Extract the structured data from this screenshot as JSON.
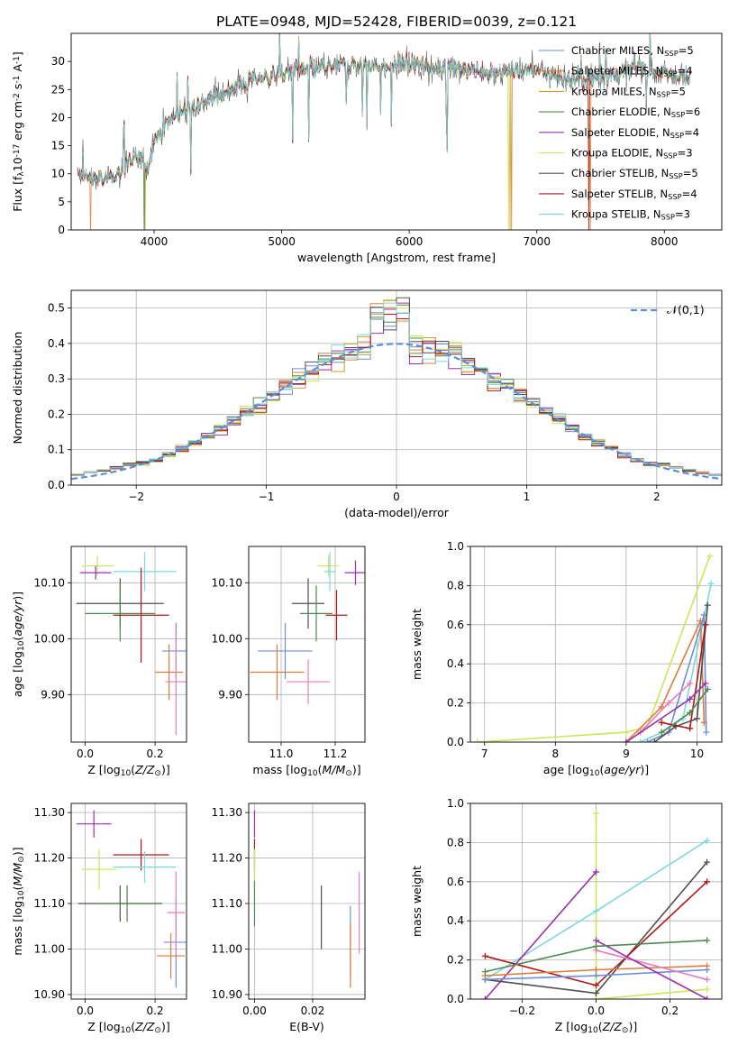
{
  "figure_title": "PLATE=0948, MJD=52428, FIBERID=0039, z=0.121",
  "colors": {
    "Chabrier MILES": "#6b8fd4",
    "Salpeter MILES": "#e07b39",
    "Kroupa MILES": "#c9a227",
    "Chabrier ELODIE": "#4d8a4d",
    "Salpeter ELODIE": "#9b30b0",
    "Kroupa ELODIE": "#c8e85a",
    "Chabrier STELIB": "#505050",
    "Salpeter STELIB": "#b01818",
    "Kroupa STELIB": "#7dd8dc",
    "pink": "#e87cc0",
    "normal": "#5b8fd8"
  },
  "chart_data": [
    {
      "id": "spectrum",
      "type": "line",
      "xlabel": "wavelength [Angstrom, rest frame]",
      "ylabel": "Flux [f$_\\lambda$10$^{-17}$ erg cm$^{-2}$ s$^{-1}$ A$^{-1}$]",
      "xlim": [
        3350,
        8450
      ],
      "ylim": [
        0,
        35
      ],
      "xticks": [
        4000,
        5000,
        6000,
        7000,
        8000
      ],
      "yticks": [
        0,
        5,
        10,
        15,
        20,
        25,
        30
      ],
      "grid": false,
      "legend_position": "top-right",
      "continuum_points": [
        [
          3400,
          9.5
        ],
        [
          3600,
          9
        ],
        [
          3700,
          10
        ],
        [
          3800,
          12
        ],
        [
          3900,
          13
        ],
        [
          3950,
          11
        ],
        [
          4000,
          16
        ],
        [
          4100,
          19
        ],
        [
          4200,
          21
        ],
        [
          4300,
          22
        ],
        [
          4500,
          24
        ],
        [
          4800,
          27
        ],
        [
          5000,
          28
        ],
        [
          5200,
          28.5
        ],
        [
          5500,
          29.5
        ],
        [
          5800,
          29
        ],
        [
          6000,
          29.5
        ],
        [
          6200,
          29
        ],
        [
          6500,
          28.5
        ],
        [
          6800,
          28
        ],
        [
          7000,
          28.5
        ],
        [
          7200,
          27
        ],
        [
          7500,
          27
        ],
        [
          7700,
          28
        ],
        [
          7800,
          29
        ],
        [
          8000,
          28
        ],
        [
          8200,
          27
        ]
      ],
      "series": [
        {
          "name": "Chabrier MILES, N$_{SSP}$=5",
          "color_key": "Chabrier MILES"
        },
        {
          "name": "Salpeter MILES, N$_{SSP}$=4",
          "color_key": "Salpeter MILES"
        },
        {
          "name": "Kroupa MILES, N$_{SSP}$=5",
          "color_key": "Kroupa MILES"
        },
        {
          "name": "Chabrier ELODIE, N$_{SSP}$=6",
          "color_key": "Chabrier ELODIE"
        },
        {
          "name": "Salpeter ELODIE, N$_{SSP}$=4",
          "color_key": "Salpeter ELODIE"
        },
        {
          "name": "Kroupa ELODIE, N$_{SSP}$=3",
          "color_key": "Kroupa ELODIE"
        },
        {
          "name": "Chabrier STELIB, N$_{SSP}$=5",
          "color_key": "Chabrier STELIB"
        },
        {
          "name": "Salpeter STELIB, N$_{SSP}$=4",
          "color_key": "Salpeter STELIB"
        },
        {
          "name": "Kroupa STELIB, N$_{SSP}$=3",
          "color_key": "Kroupa STELIB"
        }
      ]
    },
    {
      "id": "residuals",
      "type": "histogram",
      "xlabel": "(data-model)/error",
      "ylabel": "Normed distribution",
      "xlim": [
        -2.5,
        2.5
      ],
      "ylim": [
        0,
        0.55
      ],
      "xticks": [
        -2,
        -1,
        0,
        1,
        2
      ],
      "yticks": [
        0.0,
        0.1,
        0.2,
        0.3,
        0.4,
        0.5
      ],
      "grid": true,
      "legend_position": "top-right",
      "legend_label": "$\\mathcal{N}(0,1)$",
      "bin_edges_start": -2.5,
      "bin_width": 0.1
    },
    {
      "id": "age_vs_Z",
      "type": "scatter",
      "xlabel": "Z [log$_{10}$($Z/Z_\\odot$)]",
      "ylabel": "age  [log$_{10}$($age/yr$)]",
      "xlim": [
        -0.04,
        0.29
      ],
      "ylim": [
        9.815,
        10.165
      ],
      "xticks": [
        0.0,
        0.2
      ],
      "yticks": [
        9.9,
        10.0,
        10.1
      ],
      "grid": true,
      "points": [
        {
          "c": "Kroupa ELODIE",
          "x": 0.035,
          "y": 10.13,
          "ex": 0.045,
          "ey": 0.018
        },
        {
          "c": "Salpeter ELODIE",
          "x": 0.03,
          "y": 10.118,
          "ex": 0.045,
          "ey": 0.012
        },
        {
          "c": "Kroupa STELIB",
          "x": 0.17,
          "y": 10.12,
          "ex": 0.09,
          "ey": 0.035
        },
        {
          "c": "Chabrier STELIB",
          "x": 0.1,
          "y": 10.063,
          "ex": 0.125,
          "ey": 0.045
        },
        {
          "c": "Chabrier ELODIE",
          "x": 0.1,
          "y": 10.045,
          "ex": 0.1,
          "ey": 0.05
        },
        {
          "c": "Salpeter STELIB",
          "x": 0.16,
          "y": 10.042,
          "ex": 0.08,
          "ey": 0.085
        },
        {
          "c": "Chabrier MILES",
          "x": 0.26,
          "y": 9.978,
          "ex": 0.04,
          "ey": 0.05
        },
        {
          "c": "Salpeter MILES",
          "x": 0.24,
          "y": 9.94,
          "ex": 0.04,
          "ey": 0.05
        },
        {
          "c": "pink",
          "x": 0.26,
          "y": 9.923,
          "ex": 0.03,
          "ey": 0.095
        }
      ]
    },
    {
      "id": "age_vs_mass",
      "type": "scatter",
      "xlabel": "mass [log$_{10}$($M/M_\\odot$)]",
      "xlim": [
        10.88,
        11.31
      ],
      "ylim": [
        9.815,
        10.165
      ],
      "xticks": [
        11.0,
        11.2
      ],
      "yticks": [
        9.9,
        10.0,
        10.1
      ],
      "grid": true,
      "points": [
        {
          "c": "Kroupa ELODIE",
          "x": 11.175,
          "y": 10.13,
          "ex": 0.04,
          "ey": 0.018
        },
        {
          "c": "Salpeter ELODIE",
          "x": 11.275,
          "y": 10.118,
          "ex": 0.04,
          "ey": 0.022
        },
        {
          "c": "Kroupa STELIB",
          "x": 11.18,
          "y": 10.12,
          "ex": 0.02,
          "ey": 0.035
        },
        {
          "c": "Chabrier STELIB",
          "x": 11.1,
          "y": 10.063,
          "ex": 0.06,
          "ey": 0.045
        },
        {
          "c": "Chabrier ELODIE",
          "x": 11.13,
          "y": 10.045,
          "ex": 0.06,
          "ey": 0.05
        },
        {
          "c": "Salpeter STELIB",
          "x": 11.205,
          "y": 10.042,
          "ex": 0.04,
          "ey": 0.045
        },
        {
          "c": "Chabrier MILES",
          "x": 11.015,
          "y": 9.978,
          "ex": 0.1,
          "ey": 0.05
        },
        {
          "c": "Salpeter MILES",
          "x": 10.985,
          "y": 9.94,
          "ex": 0.1,
          "ey": 0.05
        },
        {
          "c": "pink",
          "x": 11.1,
          "y": 9.923,
          "ex": 0.08,
          "ey": 0.04
        }
      ]
    },
    {
      "id": "mass_weight_vs_age",
      "type": "line",
      "xlabel": "age  [log$_{10}$($age/yr$)]",
      "ylabel": "mass weight",
      "xlim": [
        6.8,
        10.35
      ],
      "ylim": [
        0,
        1
      ],
      "xticks": [
        7,
        8,
        9,
        10
      ],
      "yticks": [
        0.0,
        0.2,
        0.4,
        0.6,
        0.8,
        1.0
      ],
      "grid": true,
      "series": [
        {
          "c": "Kroupa ELODIE",
          "points": [
            [
              6.9,
              0.0
            ],
            [
              9.0,
              0.05
            ],
            [
              9.3,
              0.08
            ],
            [
              10.18,
              0.95
            ]
          ]
        },
        {
          "c": "Kroupa STELIB",
          "points": [
            [
              9.2,
              0.0
            ],
            [
              9.5,
              0.05
            ],
            [
              9.8,
              0.12
            ],
            [
              10.2,
              0.81
            ]
          ]
        },
        {
          "c": "Salpeter MILES",
          "points": [
            [
              9.0,
              0.0
            ],
            [
              9.5,
              0.18
            ],
            [
              10.05,
              0.62
            ],
            [
              10.1,
              0.1
            ]
          ]
        },
        {
          "c": "Chabrier MILES",
          "points": [
            [
              9.3,
              0.0
            ],
            [
              9.6,
              0.05
            ],
            [
              10.1,
              0.65
            ],
            [
              10.13,
              0.05
            ]
          ]
        },
        {
          "c": "Chabrier STELIB",
          "points": [
            [
              9.4,
              0.0
            ],
            [
              9.7,
              0.08
            ],
            [
              10.0,
              0.12
            ],
            [
              10.15,
              0.7
            ]
          ]
        },
        {
          "c": "Salpeter STELIB",
          "points": [
            [
              9.5,
              0.1
            ],
            [
              9.9,
              0.07
            ],
            [
              10.12,
              0.6
            ]
          ]
        },
        {
          "c": "pink",
          "points": [
            [
              9.2,
              0.05
            ],
            [
              9.6,
              0.2
            ],
            [
              9.9,
              0.3
            ]
          ]
        },
        {
          "c": "Salpeter ELODIE",
          "points": [
            [
              9.0,
              0.0
            ],
            [
              9.9,
              0.22
            ],
            [
              10.12,
              0.3
            ]
          ]
        },
        {
          "c": "Chabrier ELODIE",
          "points": [
            [
              9.5,
              0.05
            ],
            [
              9.9,
              0.15
            ],
            [
              10.15,
              0.27
            ]
          ]
        }
      ]
    },
    {
      "id": "mass_vs_Z",
      "type": "scatter",
      "xlabel": "Z [log$_{10}$($Z/Z_\\odot$)]",
      "ylabel": "mass [log$_{10}$($M/M_\\odot$)]",
      "xlim": [
        -0.04,
        0.29
      ],
      "ylim": [
        10.89,
        11.32
      ],
      "xticks": [
        0.0,
        0.2
      ],
      "yticks": [
        10.9,
        11.0,
        11.1,
        11.2,
        11.3
      ],
      "grid": true,
      "points": [
        {
          "c": "Salpeter ELODIE",
          "x": 0.025,
          "y": 11.275,
          "ex": 0.05,
          "ey": 0.03
        },
        {
          "c": "Salpeter STELIB",
          "x": 0.16,
          "y": 11.207,
          "ex": 0.08,
          "ey": 0.035
        },
        {
          "c": "Kroupa STELIB",
          "x": 0.17,
          "y": 11.18,
          "ex": 0.09,
          "ey": 0.035
        },
        {
          "c": "Kroupa ELODIE",
          "x": 0.04,
          "y": 11.175,
          "ex": 0.05,
          "ey": 0.045
        },
        {
          "c": "Chabrier STELIB",
          "x": 0.1,
          "y": 11.1,
          "ex": 0.12,
          "ey": 0.04
        },
        {
          "c": "Chabrier ELODIE",
          "x": 0.12,
          "y": 11.1,
          "ex": 0.1,
          "ey": 0.04
        },
        {
          "c": "Chabrier MILES",
          "x": 0.26,
          "y": 11.015,
          "ex": 0.035,
          "ey": 0.1
        },
        {
          "c": "Salpeter MILES",
          "x": 0.245,
          "y": 10.985,
          "ex": 0.04,
          "ey": 0.05
        },
        {
          "c": "pink",
          "x": 0.26,
          "y": 11.08,
          "ex": 0.025,
          "ey": 0.09
        }
      ]
    },
    {
      "id": "mass_vs_ebv",
      "type": "scatter",
      "xlabel": "E(B-V)",
      "xlim": [
        -0.002,
        0.038
      ],
      "ylim": [
        10.89,
        11.32
      ],
      "xticks": [
        0.0,
        0.02
      ],
      "yticks": [
        10.9,
        11.0,
        11.1,
        11.2,
        11.3
      ],
      "grid": true,
      "points": [
        {
          "c": "Salpeter ELODIE",
          "x": 0.0,
          "y": 11.275,
          "ex": 0,
          "ey": 0.03
        },
        {
          "c": "Salpeter STELIB",
          "x": 0.0,
          "y": 11.207,
          "ex": 0,
          "ey": 0.035
        },
        {
          "c": "Kroupa STELIB",
          "x": 0.0,
          "y": 11.18,
          "ex": 0,
          "ey": 0.035
        },
        {
          "c": "Kroupa ELODIE",
          "x": 0.0,
          "y": 11.175,
          "ex": 0,
          "ey": 0.045
        },
        {
          "c": "Chabrier ELODIE",
          "x": 0.0,
          "y": 11.1,
          "ex": 0,
          "ey": 0.05
        },
        {
          "c": "Chabrier STELIB",
          "x": 0.023,
          "y": 11.07,
          "ex": 0,
          "ey": 0.07
        },
        {
          "c": "Chabrier MILES",
          "x": 0.033,
          "y": 11.015,
          "ex": 0,
          "ey": 0.08
        },
        {
          "c": "Salpeter MILES",
          "x": 0.033,
          "y": 10.985,
          "ex": 0,
          "ey": 0.07
        },
        {
          "c": "pink",
          "x": 0.036,
          "y": 11.08,
          "ex": 0,
          "ey": 0.09
        }
      ]
    },
    {
      "id": "mass_weight_vs_Z",
      "type": "line",
      "xlabel": "Z [log$_{10}$($Z/Z_\\odot$)]",
      "ylabel": "mass weight",
      "xlim": [
        -0.34,
        0.34
      ],
      "ylim": [
        0,
        1
      ],
      "xticks": [
        -0.2,
        0.0,
        0.2
      ],
      "yticks": [
        0.0,
        0.2,
        0.4,
        0.6,
        0.8,
        1.0
      ],
      "grid": true,
      "series": [
        {
          "c": "Kroupa ELODIE",
          "points": [
            [
              0.0,
              0.95
            ],
            [
              0.0,
              0.0
            ],
            [
              0.3,
              0.05
            ]
          ]
        },
        {
          "c": "Kroupa STELIB",
          "points": [
            [
              -0.3,
              0.1
            ],
            [
              0.0,
              0.45
            ],
            [
              0.3,
              0.81
            ]
          ]
        },
        {
          "c": "Salpeter ELODIE",
          "points": [
            [
              -0.3,
              0.0
            ],
            [
              0.0,
              0.65
            ]
          ]
        },
        {
          "c": "Chabrier STELIB",
          "points": [
            [
              -0.3,
              0.1
            ],
            [
              0.0,
              0.03
            ],
            [
              0.3,
              0.7
            ]
          ]
        },
        {
          "c": "Salpeter STELIB",
          "points": [
            [
              -0.3,
              0.22
            ],
            [
              0.0,
              0.07
            ],
            [
              0.3,
              0.6
            ]
          ]
        },
        {
          "c": "Chabrier MILES",
          "points": [
            [
              -0.3,
              0.1
            ],
            [
              0.0,
              0.12
            ],
            [
              0.3,
              0.15
            ]
          ]
        },
        {
          "c": "Salpeter MILES",
          "points": [
            [
              -0.3,
              0.12
            ],
            [
              0.0,
              0.15
            ],
            [
              0.3,
              0.17
            ]
          ]
        },
        {
          "c": "pink",
          "points": [
            [
              0.0,
              0.25
            ],
            [
              0.3,
              0.1
            ]
          ]
        },
        {
          "c": "Salpeter ELODIE",
          "points": [
            [
              0.0,
              0.3
            ],
            [
              0.3,
              0.0
            ]
          ]
        },
        {
          "c": "Chabrier ELODIE",
          "points": [
            [
              -0.3,
              0.14
            ],
            [
              0.0,
              0.27
            ],
            [
              0.3,
              0.3
            ]
          ]
        }
      ]
    }
  ]
}
